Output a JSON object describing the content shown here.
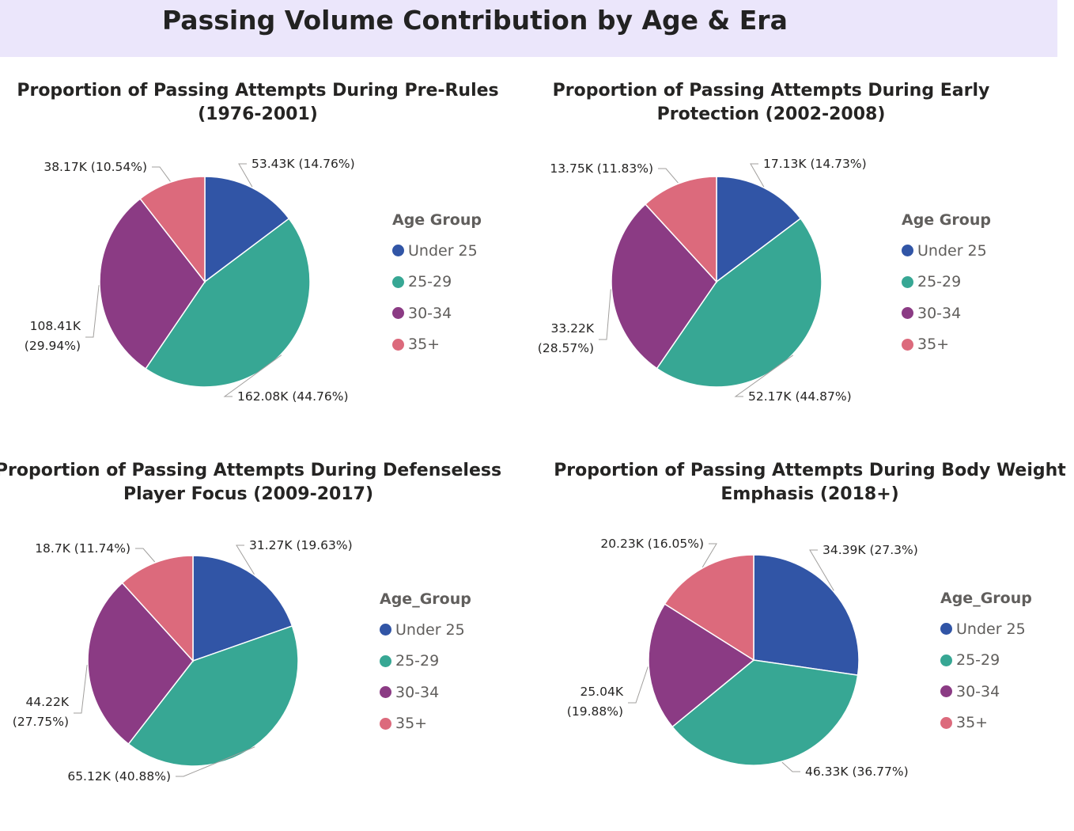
{
  "header": {
    "title": "Passing Volume Contribution by Age & Era"
  },
  "colors": {
    "Under 25": "#3155a6",
    "25-29": "#37a794",
    "30-34": "#8b3b84",
    "35+": "#dc6a7c"
  },
  "charts": [
    {
      "title_line1": "Proportion of Passing Attempts During Pre-Rules",
      "title_line2": "(1976-2001)",
      "legend_title": "Age Group",
      "legend_items": [
        "Under 25",
        "25-29",
        "30-34",
        "35+"
      ],
      "labels": [
        {
          "line1": "53.43K (14.76%)",
          "line2": ""
        },
        {
          "line1": "162.08K (44.76%)",
          "line2": ""
        },
        {
          "line1": "108.41K",
          "line2": "(29.94%)"
        },
        {
          "line1": "38.17K (10.54%)",
          "line2": ""
        }
      ]
    },
    {
      "title_line1": "Proportion of Passing Attempts During Early",
      "title_line2": "Protection (2002-2008)",
      "legend_title": "Age Group",
      "legend_items": [
        "Under 25",
        "25-29",
        "30-34",
        "35+"
      ],
      "labels": [
        {
          "line1": "17.13K (14.73%)",
          "line2": ""
        },
        {
          "line1": "52.17K (44.87%)",
          "line2": ""
        },
        {
          "line1": "33.22K",
          "line2": "(28.57%)"
        },
        {
          "line1": "13.75K (11.83%)",
          "line2": ""
        }
      ]
    },
    {
      "title_line1": "Proportion of Passing Attempts During Defenseless",
      "title_line2": "Player Focus (2009-2017)",
      "legend_title": "Age_Group",
      "legend_items": [
        "Under 25",
        "25-29",
        "30-34",
        "35+"
      ],
      "labels": [
        {
          "line1": "31.27K (19.63%)",
          "line2": ""
        },
        {
          "line1": "65.12K (40.88%)",
          "line2": ""
        },
        {
          "line1": "44.22K",
          "line2": "(27.75%)"
        },
        {
          "line1": "18.7K (11.74%)",
          "line2": ""
        }
      ]
    },
    {
      "title_line1": "Proportion of Passing Attempts During Body Weight",
      "title_line2": "Emphasis (2018+)",
      "legend_title": "Age_Group",
      "legend_items": [
        "Under 25",
        "25-29",
        "30-34",
        "35+"
      ],
      "labels": [
        {
          "line1": "34.39K (27.3%)",
          "line2": ""
        },
        {
          "line1": "46.33K (36.77%)",
          "line2": ""
        },
        {
          "line1": "25.04K",
          "line2": "(19.88%)"
        },
        {
          "line1": "20.23K (16.05%)",
          "line2": ""
        }
      ]
    }
  ],
  "chart_data": [
    {
      "type": "pie",
      "title": "Proportion of Passing Attempts During Pre-Rules (1976-2001)",
      "legend_title": "Age Group",
      "legend_position": "right",
      "categories": [
        "Under 25",
        "25-29",
        "30-34",
        "35+"
      ],
      "values": [
        53430,
        162080,
        108410,
        38170
      ],
      "percents": [
        14.76,
        44.76,
        29.94,
        10.54
      ]
    },
    {
      "type": "pie",
      "title": "Proportion of Passing Attempts During Early Protection (2002-2008)",
      "legend_title": "Age Group",
      "legend_position": "right",
      "categories": [
        "Under 25",
        "25-29",
        "30-34",
        "35+"
      ],
      "values": [
        17130,
        52170,
        33220,
        13750
      ],
      "percents": [
        14.73,
        44.87,
        28.57,
        11.83
      ]
    },
    {
      "type": "pie",
      "title": "Proportion of Passing Attempts During Defenseless Player Focus (2009-2017)",
      "legend_title": "Age_Group",
      "legend_position": "right",
      "categories": [
        "Under 25",
        "25-29",
        "30-34",
        "35+"
      ],
      "values": [
        31270,
        65120,
        44220,
        18700
      ],
      "percents": [
        19.63,
        40.88,
        27.75,
        11.74
      ]
    },
    {
      "type": "pie",
      "title": "Proportion of Passing Attempts During Body Weight Emphasis (2018+)",
      "legend_title": "Age_Group",
      "legend_position": "right",
      "categories": [
        "Under 25",
        "25-29",
        "30-34",
        "35+"
      ],
      "values": [
        34390,
        46330,
        25040,
        20230
      ],
      "percents": [
        27.3,
        36.77,
        19.88,
        16.05
      ]
    }
  ]
}
